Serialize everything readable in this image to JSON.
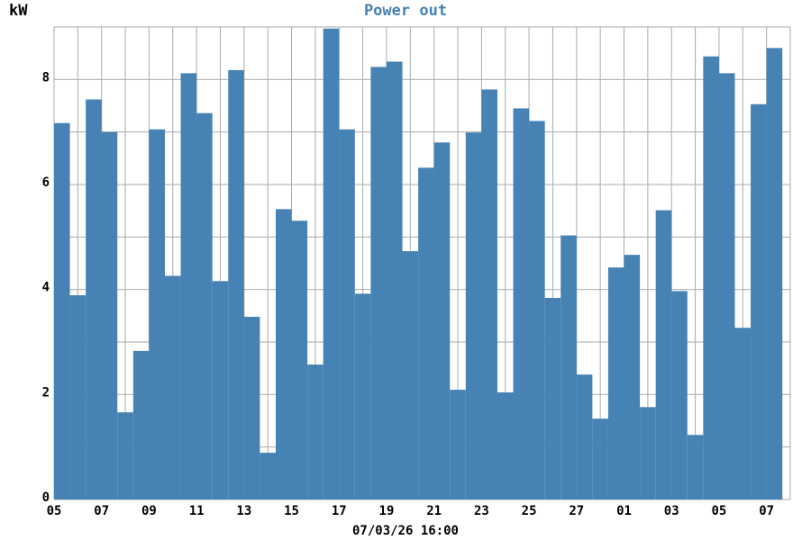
{
  "chart_data": {
    "type": "bar",
    "title": "Power out",
    "ylabel": "kW",
    "xlabel": "07/03/26 16:00",
    "color": "#4682b4",
    "title_color": "#4682b4",
    "grid": true,
    "bar_width": 40,
    "x": [
      0,
      40,
      80,
      120,
      160,
      200,
      240,
      280,
      320,
      360,
      400,
      440,
      480,
      520,
      560,
      600,
      640,
      680,
      720,
      760,
      800,
      840,
      880,
      920,
      960,
      1000,
      1040,
      1080,
      1120,
      1160,
      1200,
      1240,
      1280,
      1320,
      1360,
      1400,
      1440,
      1480,
      1520,
      1560,
      1600,
      1640,
      1680,
      1720,
      1760,
      1800
    ],
    "values": [
      7.17,
      3.89,
      7.62,
      7.0,
      1.66,
      2.83,
      7.05,
      4.26,
      8.12,
      7.36,
      4.16,
      8.18,
      3.48,
      0.89,
      5.53,
      5.31,
      2.57,
      8.97,
      7.05,
      3.92,
      8.24,
      8.34,
      4.73,
      6.32,
      6.8,
      2.09,
      6.99,
      7.81,
      2.04,
      7.45,
      7.21,
      3.84,
      5.03,
      2.38,
      1.54,
      4.42,
      4.66,
      1.76,
      5.51,
      3.97,
      1.23,
      8.44,
      8.12,
      3.27,
      7.53,
      8.6
    ],
    "xlim": [
      0,
      1860
    ],
    "xticks": [
      {
        "value": 0,
        "label": "05"
      },
      {
        "value": 120,
        "label": "07"
      },
      {
        "value": 240,
        "label": "09"
      },
      {
        "value": 360,
        "label": "11"
      },
      {
        "value": 480,
        "label": "13"
      },
      {
        "value": 600,
        "label": "15"
      },
      {
        "value": 720,
        "label": "17"
      },
      {
        "value": 840,
        "label": "19"
      },
      {
        "value": 960,
        "label": "21"
      },
      {
        "value": 1080,
        "label": "23"
      },
      {
        "value": 1200,
        "label": "25"
      },
      {
        "value": 1320,
        "label": "27"
      },
      {
        "value": 1440,
        "label": "01"
      },
      {
        "value": 1560,
        "label": "03"
      },
      {
        "value": 1680,
        "label": "05"
      },
      {
        "value": 1800,
        "label": "07"
      }
    ],
    "xminor": [
      60,
      180,
      300,
      420,
      540,
      660,
      780,
      900,
      1020,
      1140,
      1260,
      1380,
      1500,
      1620,
      1740
    ],
    "ylim": [
      0,
      9
    ],
    "yticks": [
      0,
      2,
      4,
      6,
      8
    ],
    "yminor": [
      1,
      3,
      5,
      7,
      9
    ]
  }
}
